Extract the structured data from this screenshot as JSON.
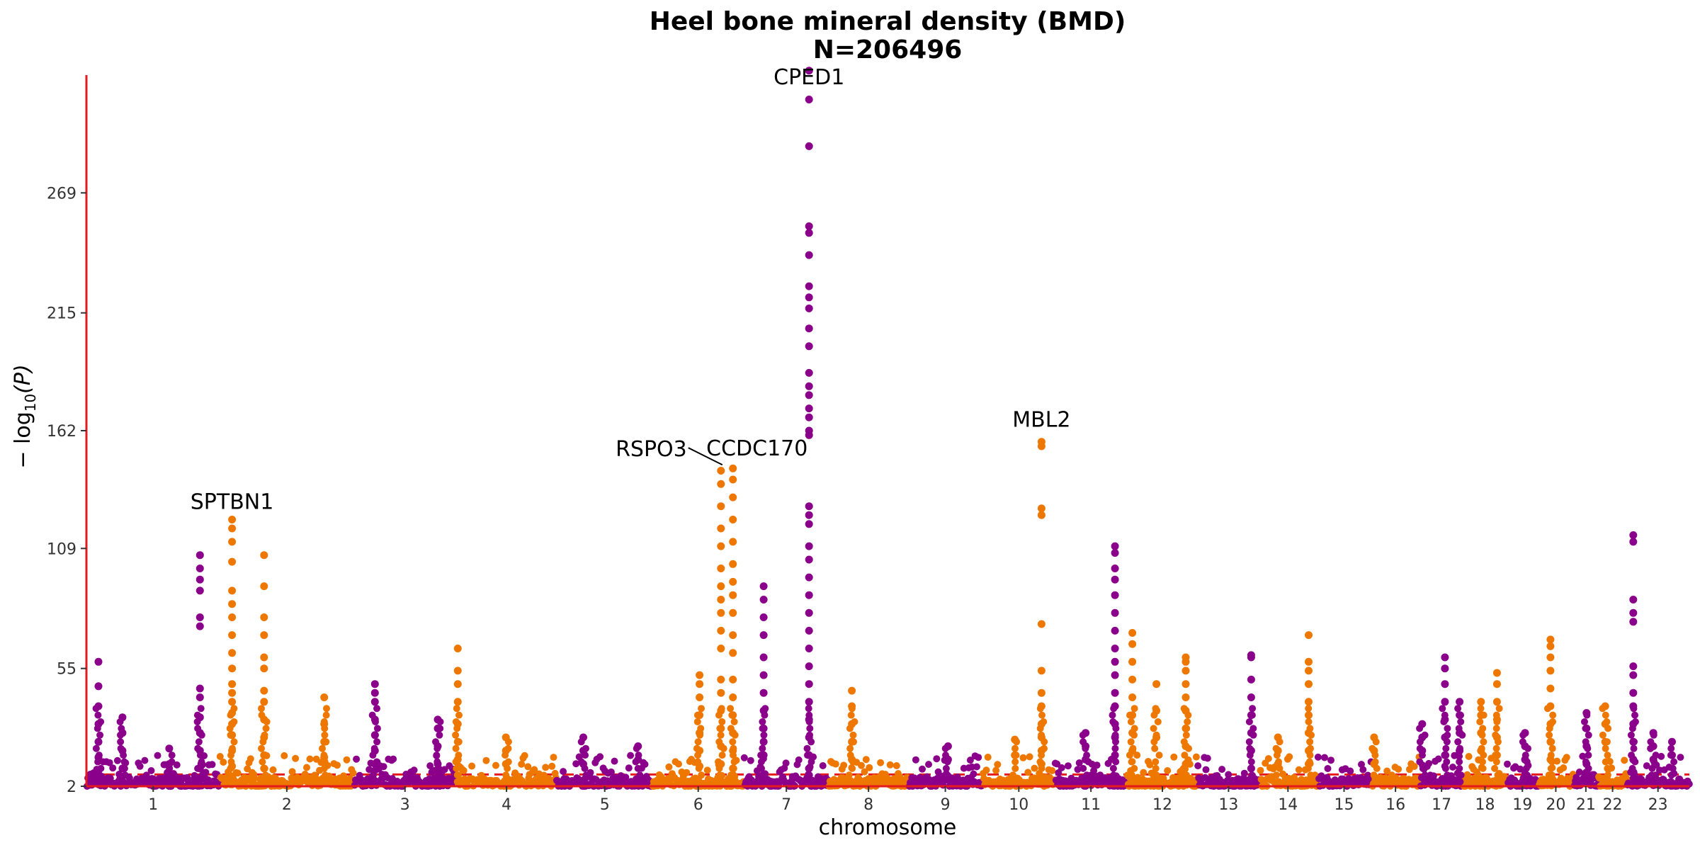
{
  "chart_data": {
    "type": "scatter",
    "title": "Heel bone mineral density (BMD)",
    "subtitle": "N=206496",
    "xlabel": "chromosome",
    "ylabel_main": "− log",
    "ylabel_sub": "10",
    "ylabel_tail": "(P)",
    "yticks": [
      2,
      55,
      109,
      162,
      215,
      269
    ],
    "ylim": [
      2,
      322
    ],
    "significance_line": 7.3,
    "colors": {
      "odd": "#8B008B",
      "even": "#EE7700",
      "axis": "#e41a1c",
      "threshold": "#e41a1c"
    },
    "chromosomes": [
      {
        "label": "1",
        "start": 0,
        "end": 1.0
      },
      {
        "label": "2",
        "start": 1.0,
        "end": 2.0
      },
      {
        "label": "3",
        "start": 2.0,
        "end": 2.77
      },
      {
        "label": "4",
        "start": 2.77,
        "end": 3.52
      },
      {
        "label": "5",
        "start": 3.52,
        "end": 4.24
      },
      {
        "label": "6",
        "start": 4.24,
        "end": 4.92
      },
      {
        "label": "7",
        "start": 4.92,
        "end": 5.56
      },
      {
        "label": "8",
        "start": 5.56,
        "end": 6.15
      },
      {
        "label": "9",
        "start": 6.15,
        "end": 6.71
      },
      {
        "label": "10",
        "start": 6.71,
        "end": 7.25
      },
      {
        "label": "11",
        "start": 7.25,
        "end": 7.79
      },
      {
        "label": "12",
        "start": 7.79,
        "end": 8.32
      },
      {
        "label": "13",
        "start": 8.32,
        "end": 8.78
      },
      {
        "label": "14",
        "start": 8.78,
        "end": 9.21
      },
      {
        "label": "15",
        "start": 9.21,
        "end": 9.62
      },
      {
        "label": "16",
        "start": 9.62,
        "end": 9.98
      },
      {
        "label": "17",
        "start": 9.98,
        "end": 10.31
      },
      {
        "label": "18",
        "start": 10.31,
        "end": 10.63
      },
      {
        "label": "19",
        "start": 10.63,
        "end": 10.87
      },
      {
        "label": "20",
        "start": 10.87,
        "end": 11.13
      },
      {
        "label": "21",
        "start": 11.13,
        "end": 11.32
      },
      {
        "label": "22",
        "start": 11.32,
        "end": 11.53
      },
      {
        "label": "23",
        "start": 11.53,
        "end": 12.0
      }
    ],
    "peaks": [
      {
        "x": 0.09,
        "values": [
          58,
          47,
          38,
          30,
          22,
          15,
          9
        ]
      },
      {
        "x": 0.27,
        "values": [
          33,
          26,
          18,
          10
        ]
      },
      {
        "x": 0.62,
        "values": [
          19,
          12
        ]
      },
      {
        "x": 0.85,
        "values": [
          106,
          100,
          95,
          90,
          78,
          74,
          46,
          42,
          33,
          26,
          18,
          10
        ]
      },
      {
        "x": 1.09,
        "values": [
          122,
          118,
          112,
          103,
          90,
          84,
          78,
          70,
          62,
          55,
          48,
          44,
          40,
          35,
          30,
          25,
          18,
          11
        ]
      },
      {
        "x": 1.33,
        "values": [
          106,
          92,
          78,
          70,
          60,
          55,
          45,
          40,
          32,
          24,
          16,
          10
        ]
      },
      {
        "x": 1.78,
        "values": [
          42,
          30,
          22,
          15
        ]
      },
      {
        "x": 2.16,
        "values": [
          48,
          44,
          40,
          32,
          25,
          18,
          12
        ]
      },
      {
        "x": 2.63,
        "values": [
          32,
          28,
          20,
          12
        ]
      },
      {
        "x": 2.78,
        "values": [
          64,
          54,
          48,
          40,
          30,
          22,
          14
        ]
      },
      {
        "x": 3.14,
        "values": [
          24,
          18,
          12
        ]
      },
      {
        "x": 3.72,
        "values": [
          24,
          18,
          12
        ]
      },
      {
        "x": 4.13,
        "values": [
          20,
          14
        ]
      },
      {
        "x": 4.59,
        "values": [
          52,
          48,
          42,
          34,
          26,
          18,
          11
        ]
      },
      {
        "x": 4.75,
        "values": [
          144,
          138,
          128,
          118,
          110,
          100,
          92,
          86,
          80,
          72,
          64,
          50,
          44,
          36,
          28,
          20,
          12
        ]
      },
      {
        "x": 4.84,
        "values": [
          145,
          140,
          132,
          122,
          112,
          102,
          94,
          88,
          80,
          70,
          62,
          50,
          42,
          34,
          26,
          18,
          10
        ]
      },
      {
        "x": 5.07,
        "values": [
          92,
          86,
          78,
          70,
          60,
          52,
          44,
          36,
          28,
          22,
          16
        ]
      },
      {
        "x": 5.41,
        "values": [
          324,
          311,
          290,
          254,
          251,
          241,
          227,
          222,
          217,
          208,
          200,
          188,
          182,
          178,
          172,
          168,
          162,
          160,
          128,
          124,
          120,
          110,
          104,
          96,
          88,
          80,
          72,
          64,
          56,
          48,
          40,
          32,
          24,
          16,
          10
        ]
      },
      {
        "x": 5.73,
        "values": [
          45,
          38,
          30,
          22,
          14
        ]
      },
      {
        "x": 6.45,
        "values": [
          20,
          14
        ]
      },
      {
        "x": 6.95,
        "values": [
          23,
          16
        ]
      },
      {
        "x": 7.15,
        "values": [
          157,
          155,
          127,
          124,
          75,
          54,
          44,
          38,
          30,
          24,
          18,
          12
        ]
      },
      {
        "x": 7.48,
        "values": [
          26,
          20,
          14
        ]
      },
      {
        "x": 7.7,
        "values": [
          110,
          107,
          100,
          95,
          88,
          80,
          72,
          64,
          58,
          52,
          44,
          38,
          30,
          24,
          16
        ]
      },
      {
        "x": 7.83,
        "values": [
          71,
          66,
          58,
          50,
          42,
          34,
          26,
          18
        ]
      },
      {
        "x": 8.01,
        "values": [
          48,
          36,
          24
        ]
      },
      {
        "x": 8.23,
        "values": [
          60,
          58,
          54,
          48,
          42,
          36,
          28,
          20,
          12
        ]
      },
      {
        "x": 8.72,
        "values": [
          61,
          60,
          50,
          42,
          34,
          26,
          18,
          10
        ]
      },
      {
        "x": 8.92,
        "values": [
          24,
          18,
          12
        ]
      },
      {
        "x": 9.15,
        "values": [
          70,
          58,
          54,
          48,
          40,
          34,
          26,
          18,
          12
        ]
      },
      {
        "x": 9.64,
        "values": [
          24,
          18,
          12
        ]
      },
      {
        "x": 10.0,
        "values": [
          30,
          24,
          18
        ]
      },
      {
        "x": 10.17,
        "values": [
          60,
          55,
          48,
          40,
          32,
          24,
          16
        ]
      },
      {
        "x": 10.28,
        "values": [
          40,
          34,
          26,
          18
        ]
      },
      {
        "x": 10.44,
        "values": [
          40,
          34,
          26,
          18
        ]
      },
      {
        "x": 10.56,
        "values": [
          53,
          48,
          40,
          32,
          24,
          16
        ]
      },
      {
        "x": 10.77,
        "values": [
          26,
          20,
          14
        ]
      },
      {
        "x": 10.96,
        "values": [
          68,
          65,
          60,
          54,
          46,
          38,
          30,
          22,
          14
        ]
      },
      {
        "x": 11.23,
        "values": [
          35,
          28,
          20,
          12
        ]
      },
      {
        "x": 11.37,
        "values": [
          38,
          30,
          22
        ]
      },
      {
        "x": 11.58,
        "values": [
          115,
          112,
          86,
          80,
          76,
          56,
          52,
          44,
          38,
          30,
          22,
          14
        ]
      },
      {
        "x": 11.73,
        "values": [
          26,
          20,
          14
        ]
      },
      {
        "x": 11.87,
        "values": [
          22,
          16
        ]
      }
    ],
    "annotations": [
      {
        "label": "SPTBN1",
        "x": 1.09,
        "y": 123
      },
      {
        "label": "RSPO3",
        "x": 4.75,
        "y": 146,
        "leader": true
      },
      {
        "label": "CCDC170",
        "x": 4.84,
        "y": 147
      },
      {
        "label": "CPED1",
        "x": 5.41,
        "y": 314
      },
      {
        "label": "MBL2",
        "x": 7.15,
        "y": 160
      }
    ]
  }
}
